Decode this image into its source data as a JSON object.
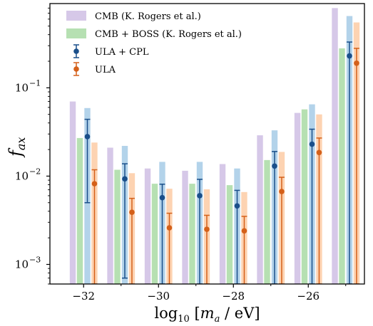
{
  "chart_data": {
    "type": "bar",
    "ylabel": "f_ax",
    "yscale": "log",
    "ylim": [
      0.0006,
      0.9
    ],
    "yticks": [
      {
        "value": 0.001,
        "base": "10",
        "exp": "−3"
      },
      {
        "value": 0.01,
        "base": "10",
        "exp": "−2"
      },
      {
        "value": 0.1,
        "base": "10",
        "exp": "−1"
      }
    ],
    "xlim": [
      -32.9,
      -24.5
    ],
    "xticks": [
      {
        "value": -32,
        "label": "−32"
      },
      {
        "value": -30,
        "label": "−30"
      },
      {
        "value": -28,
        "label": "−28"
      },
      {
        "value": -26,
        "label": "−26"
      }
    ],
    "grid": false,
    "legend_position": "top-left",
    "x_positions": [
      -32,
      -31,
      -30,
      -29,
      -28,
      -27,
      -26,
      -25
    ],
    "bar_series": [
      {
        "name": "CMB (K. Rogers et al.)",
        "color": "#d6c8e8",
        "values": [
          0.07,
          0.021,
          0.0122,
          0.0115,
          0.0137,
          0.029,
          0.052,
          0.8
        ]
      },
      {
        "name": "CMB + BOSS (K. Rogers et al.)",
        "color": "#b6e0b2",
        "values": [
          0.027,
          0.0118,
          0.0082,
          0.0082,
          0.0079,
          0.0152,
          0.057,
          0.28
        ]
      },
      {
        "name": "",
        "color": "#b3d3ea",
        "values": [
          0.059,
          0.022,
          0.0145,
          0.0145,
          0.0122,
          0.033,
          0.065,
          0.65
        ]
      },
      {
        "name": "",
        "color": "#fdd3b2",
        "values": [
          0.024,
          0.0108,
          0.0072,
          0.0071,
          0.0066,
          0.0188,
          0.05,
          0.55
        ]
      }
    ],
    "point_series": [
      {
        "name": "ULA + CPL",
        "color": "#1a4f8a",
        "values": [
          0.028,
          0.0093,
          0.0057,
          0.006,
          0.0046,
          0.013,
          0.023,
          0.23
        ],
        "err_low": [
          0.005,
          0.0007,
          0.0006,
          0.0006,
          0.0006,
          0.0006,
          0.0006,
          0.0006
        ],
        "err_high": [
          0.044,
          0.0138,
          0.0081,
          0.0092,
          0.0069,
          0.019,
          0.034,
          0.33
        ]
      },
      {
        "name": "ULA",
        "color": "#d4601a",
        "values": [
          0.0082,
          0.0039,
          0.0026,
          0.0025,
          0.0024,
          0.0067,
          0.0185,
          0.19
        ],
        "err_low": [
          0.0006,
          0.0006,
          0.0006,
          0.0006,
          0.0006,
          0.0006,
          0.0006,
          0.0006
        ],
        "err_high": [
          0.0118,
          0.0056,
          0.0038,
          0.0036,
          0.0035,
          0.0097,
          0.027,
          0.28
        ]
      }
    ]
  }
}
